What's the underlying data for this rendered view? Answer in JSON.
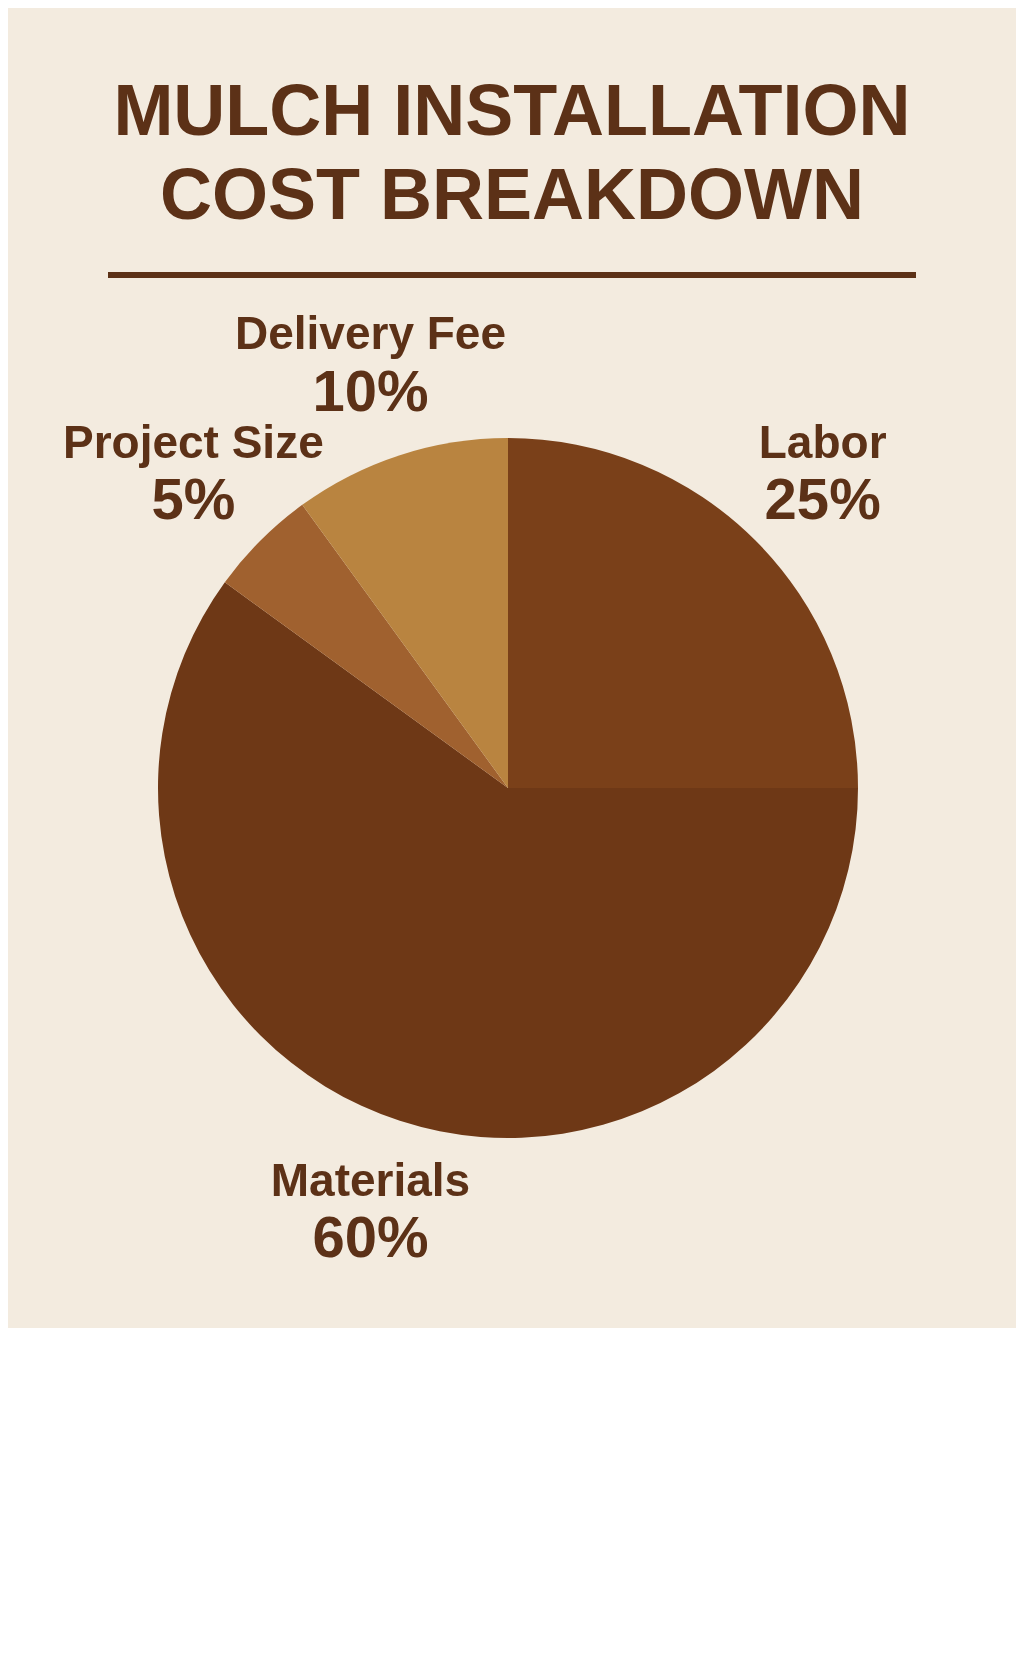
{
  "chart_data": {
    "type": "pie",
    "title": "MULCH INSTALLATION COST BREAKDOWN",
    "categories": [
      "Labor",
      "Materials",
      "Project Size",
      "Delivery Fee"
    ],
    "values": [
      25,
      60,
      5,
      10
    ],
    "colors": [
      "#7a4019",
      "#6e3816",
      "#a0612f",
      "#b98440"
    ],
    "value_labels": [
      "25%",
      "60%",
      "5%",
      "10%"
    ]
  }
}
